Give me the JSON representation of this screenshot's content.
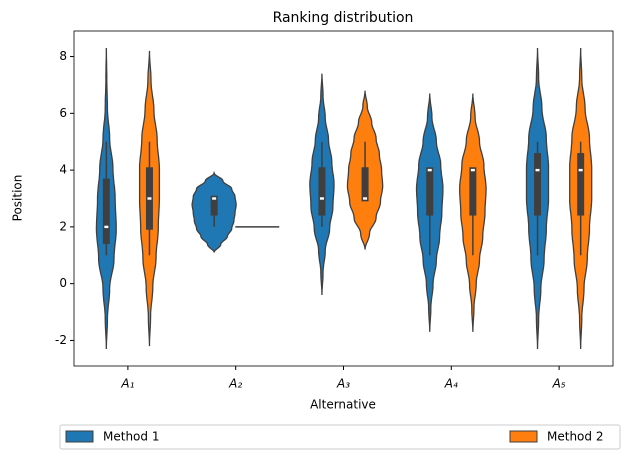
{
  "chart_data": {
    "type": "violin",
    "title": "Ranking distribution",
    "xlabel": "Alternative",
    "ylabel": "Position",
    "categories": [
      "A₁",
      "A₂",
      "A₃",
      "A₄",
      "A₅"
    ],
    "ylim": [
      -2.9,
      8.9
    ],
    "yticks": [
      -2,
      0,
      2,
      4,
      6,
      8
    ],
    "legend": "bottom",
    "series": [
      {
        "name": "Method 1",
        "color": "#1f77b4",
        "violins": [
          {
            "lo": -2.3,
            "hi": 8.3,
            "density": [
              0,
              0.05,
              0.15,
              0.35,
              0.45,
              0.4,
              0.3,
              0.15,
              0.05,
              0.02,
              0
            ],
            "q1": 1.4,
            "median": 2,
            "q3": 3.7,
            "whisker": [
              1,
              5
            ]
          },
          {
            "lo": 1.1,
            "hi": 3.9,
            "density": [
              0,
              0.3,
              0.6,
              0.8,
              0.9,
              0.95,
              1.0,
              0.95,
              0.8,
              0.4,
              0
            ],
            "q1": 2.4,
            "median": 3,
            "q3": 3.1,
            "whisker": [
              2,
              3
            ]
          },
          {
            "lo": -0.4,
            "hi": 7.4,
            "density": [
              0,
              0.05,
              0.15,
              0.35,
              0.5,
              0.55,
              0.45,
              0.3,
              0.15,
              0.05,
              0
            ],
            "q1": 2.4,
            "median": 3,
            "q3": 4.1,
            "whisker": [
              2,
              5
            ]
          },
          {
            "lo": -1.7,
            "hi": 6.7,
            "density": [
              0,
              0.05,
              0.15,
              0.3,
              0.45,
              0.55,
              0.6,
              0.5,
              0.3,
              0.1,
              0
            ],
            "q1": 2.4,
            "median": 4,
            "q3": 4.1,
            "whisker": [
              1,
              4
            ]
          },
          {
            "lo": -2.3,
            "hi": 8.3,
            "density": [
              0,
              0.05,
              0.15,
              0.3,
              0.4,
              0.5,
              0.5,
              0.4,
              0.2,
              0.05,
              0
            ],
            "q1": 2.4,
            "median": 4,
            "q3": 4.6,
            "whisker": [
              1,
              5
            ]
          }
        ]
      },
      {
        "name": "Method 2",
        "color": "#ff7f0e",
        "violins": [
          {
            "lo": -2.2,
            "hi": 8.2,
            "density": [
              0,
              0.05,
              0.15,
              0.3,
              0.4,
              0.45,
              0.45,
              0.35,
              0.2,
              0.07,
              0
            ],
            "q1": 1.9,
            "median": 3,
            "q3": 4.1,
            "whisker": [
              1,
              5
            ]
          },
          {
            "lo": 2,
            "hi": 2
          },
          {
            "lo": 1.2,
            "hi": 6.8,
            "density": [
              0,
              0.2,
              0.5,
              0.7,
              0.8,
              0.75,
              0.65,
              0.5,
              0.3,
              0.1,
              0
            ],
            "q1": 2.9,
            "median": 3,
            "q3": 4.1,
            "whisker": [
              3,
              5
            ]
          },
          {
            "lo": -1.7,
            "hi": 6.7,
            "density": [
              0,
              0.05,
              0.15,
              0.3,
              0.45,
              0.55,
              0.6,
              0.5,
              0.3,
              0.1,
              0
            ],
            "q1": 2.4,
            "median": 4,
            "q3": 4.1,
            "whisker": [
              1,
              4
            ]
          },
          {
            "lo": -2.3,
            "hi": 8.3,
            "density": [
              0,
              0.05,
              0.15,
              0.3,
              0.4,
              0.5,
              0.5,
              0.4,
              0.2,
              0.05,
              0
            ],
            "q1": 2.4,
            "median": 4,
            "q3": 4.6,
            "whisker": [
              1,
              5
            ]
          }
        ]
      }
    ]
  }
}
